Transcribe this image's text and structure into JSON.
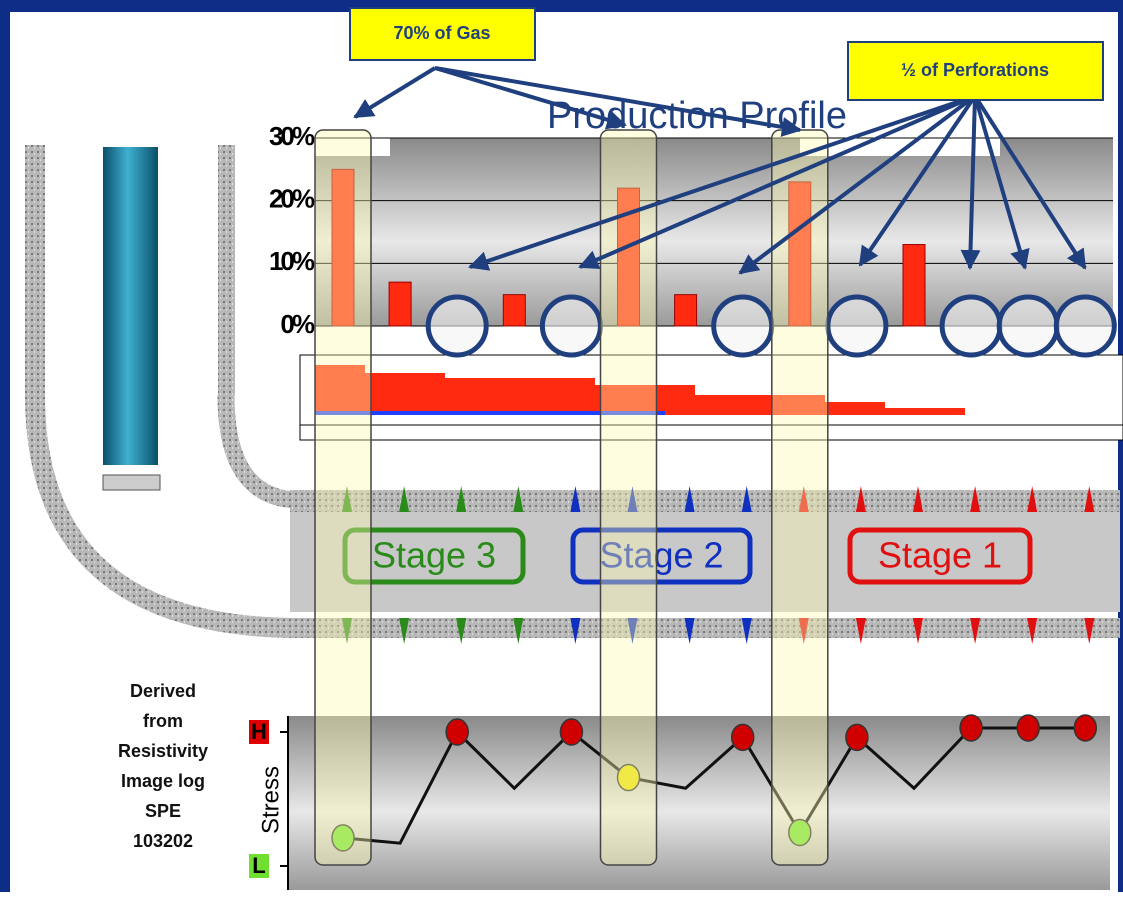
{
  "chart_data": [
    {
      "type": "bar",
      "title": "Production Profile",
      "categories": [
        null,
        null,
        null,
        null,
        null,
        null,
        null,
        null,
        null,
        null,
        null,
        null,
        null,
        null
      ],
      "values": [
        25,
        7,
        0,
        5,
        0,
        22,
        5,
        0,
        23,
        0,
        13,
        0,
        0,
        0
      ],
      "color": "#ff2a10",
      "zero_marker_color": "#1f3f7f",
      "ylim": [
        0,
        30
      ],
      "yticks": [
        {
          "value": 0,
          "label": "0%"
        },
        {
          "value": 10,
          "label": "10%"
        },
        {
          "value": 20,
          "label": "20%"
        },
        {
          "value": 30,
          "label": "30%"
        }
      ],
      "grid": true
    },
    {
      "type": "line",
      "ylabel": "Stress",
      "categories": [
        null,
        null,
        null,
        null,
        null,
        null,
        null,
        null,
        null,
        null,
        null,
        null,
        null,
        null
      ],
      "values": [
        2.1,
        1.7,
        10,
        5.8,
        10,
        6.6,
        5.8,
        9.6,
        2.5,
        9.6,
        5.8,
        10.3,
        10.3,
        10.3
      ],
      "point_colors": [
        "#6fe030",
        null,
        "#d00000",
        null,
        "#d00000",
        "#e8e000",
        null,
        "#d00000",
        "#6fe030",
        "#d00000",
        null,
        "#d00000",
        "#d00000",
        "#d00000"
      ],
      "color": "#111111",
      "ylim": [
        0,
        10
      ],
      "yticks": [
        {
          "value": 0,
          "label": "L"
        },
        {
          "value": 10,
          "label": "H"
        }
      ],
      "tick_colors": [
        "#6fe030",
        "#e00000"
      ]
    }
  ],
  "callouts": [
    "70% of Gas",
    "½ of Perforations"
  ],
  "stages": [
    {
      "name": "Stage 3",
      "color": "#2a8a1a"
    },
    {
      "name": "Stage 2",
      "color": "#1030c0"
    },
    {
      "name": "Stage 1",
      "color": "#e01010"
    }
  ],
  "highlighted_clusters": [
    0,
    5,
    8
  ],
  "note": [
    "Derived",
    "from",
    "Resistivity",
    "Image log"
  ],
  "reference": [
    "SPE",
    "103202"
  ]
}
